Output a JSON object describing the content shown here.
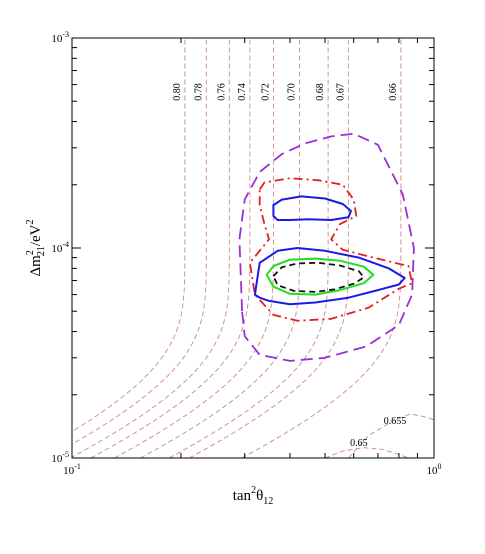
{
  "chart_data": {
    "type": "line",
    "title": "",
    "xlabel": "tan²θ₁₂",
    "xlabel_parts": {
      "base": "tan",
      "sup": "2",
      "sym": "θ",
      "sub": "12"
    },
    "ylabel": "Δm²₂₁/eV²",
    "ylabel_parts": {
      "sym": "Δm",
      "sup1": "2",
      "sub": "21",
      "unit": "/eV",
      "sup2": "2"
    },
    "xscale": "log",
    "yscale": "log",
    "xlim": [
      0.1,
      1.0
    ],
    "ylim": [
      1e-05,
      0.001
    ],
    "grid": false,
    "legend": "none",
    "x_ticks": [
      {
        "base": "10",
        "exp": "-1",
        "value": 0.1
      },
      {
        "base": "10",
        "exp": "0",
        "value": 1.0
      }
    ],
    "y_ticks": [
      {
        "base": "10",
        "exp": "-5",
        "value": 1e-05
      },
      {
        "base": "10",
        "exp": "-4",
        "value": 0.0001
      },
      {
        "base": "10",
        "exp": "-3",
        "value": 0.001
      }
    ],
    "iso_contour_color": "#c98a8a",
    "iso_contours": [
      {
        "label": "0.80",
        "x_asym": 0.205
      },
      {
        "label": "0.78",
        "x_asym": 0.235
      },
      {
        "label": "0.76",
        "x_asym": 0.272
      },
      {
        "label": "0.74",
        "x_asym": 0.31
      },
      {
        "label": "0.72",
        "x_asym": 0.36
      },
      {
        "label": "0.70",
        "x_asym": 0.425
      },
      {
        "label": "0.68",
        "x_asym": 0.51
      },
      {
        "label": "0.67",
        "x_asym": 0.58
      },
      {
        "label": "0.66",
        "x_asym": 0.81
      }
    ],
    "low_contours": [
      {
        "label": "0.655",
        "label_at": [
          0.78,
          1.45e-05
        ]
      },
      {
        "label": "0.65",
        "label_at": [
          0.62,
          1.14e-05
        ]
      }
    ],
    "series": [
      {
        "style": "long-dashed",
        "color": "#9a2fd6",
        "x": [
          0.295,
          0.29,
          0.3,
          0.33,
          0.38,
          0.44,
          0.52,
          0.6,
          0.7,
          0.82,
          0.88,
          0.87,
          0.8,
          0.65,
          0.5,
          0.4,
          0.33,
          0.3,
          0.295
        ],
        "y": [
          5e-05,
          0.00011,
          0.00017,
          0.00023,
          0.00028,
          0.000315,
          0.00034,
          0.00035,
          0.00031,
          0.00018,
          0.0001,
          6e-05,
          4.3e-05,
          3.4e-05,
          3e-05,
          2.9e-05,
          3.1e-05,
          3.8e-05,
          5e-05
        ]
      },
      {
        "style": "dash-dot",
        "color": "#e02020",
        "x": [
          0.33,
          0.34,
          0.4,
          0.48,
          0.56,
          0.6,
          0.61,
          0.55,
          0.52,
          0.56,
          0.68,
          0.85,
          0.87,
          0.8,
          0.66,
          0.52,
          0.42,
          0.36,
          0.32,
          0.31,
          0.35,
          0.34,
          0.33,
          0.33
        ],
        "y": [
          0.00019,
          0.000205,
          0.000215,
          0.00021,
          0.0002,
          0.00017,
          0.000142,
          0.00013,
          0.00011,
          9.8e-05,
          9e-05,
          8.2e-05,
          6.8e-05,
          6.4e-05,
          5.2e-05,
          4.6e-05,
          4.5e-05,
          4.8e-05,
          6e-05,
          8.5e-05,
          0.00011,
          0.00013,
          0.00016,
          0.00019
        ]
      },
      {
        "style": "solid",
        "color": "#1a1ae6",
        "x": [
          0.36,
          0.36,
          0.38,
          0.43,
          0.5,
          0.56,
          0.59,
          0.58,
          0.52,
          0.45,
          0.4,
          0.37,
          0.36
        ],
        "y": [
          0.000142,
          0.00016,
          0.00017,
          0.000176,
          0.000172,
          0.000162,
          0.00015,
          0.00014,
          0.000136,
          0.000137,
          0.000136,
          0.000136,
          0.000142
        ]
      },
      {
        "style": "solid",
        "color": "#1a1ae6",
        "x": [
          0.32,
          0.33,
          0.37,
          0.42,
          0.5,
          0.62,
          0.75,
          0.83,
          0.8,
          0.7,
          0.58,
          0.47,
          0.4,
          0.35,
          0.33,
          0.32
        ],
        "y": [
          6e-05,
          8.5e-05,
          9.7e-05,
          0.0001,
          9.7e-05,
          9e-05,
          8e-05,
          7.2e-05,
          6.7e-05,
          6.3e-05,
          5.8e-05,
          5.5e-05,
          5.4e-05,
          5.6e-05,
          5.8e-05,
          6e-05
        ]
      },
      {
        "style": "solid",
        "color": "#22dd22",
        "x": [
          0.345,
          0.36,
          0.4,
          0.47,
          0.55,
          0.64,
          0.68,
          0.64,
          0.55,
          0.47,
          0.4,
          0.36,
          0.345
        ],
        "y": [
          7.45e-05,
          8.2e-05,
          8.8e-05,
          8.9e-05,
          8.7e-05,
          8.15e-05,
          7.45e-05,
          6.8e-05,
          6.3e-05,
          6e-05,
          6.05e-05,
          6.55e-05,
          7.45e-05
        ]
      },
      {
        "style": "dashed",
        "color": "#111111",
        "x": [
          0.36,
          0.38,
          0.42,
          0.48,
          0.55,
          0.62,
          0.64,
          0.6,
          0.53,
          0.47,
          0.41,
          0.37,
          0.36
        ],
        "y": [
          7.35e-05,
          8.1e-05,
          8.45e-05,
          8.5e-05,
          8.25e-05,
          7.75e-05,
          7.25e-05,
          6.75e-05,
          6.35e-05,
          6.18e-05,
          6.25e-05,
          6.65e-05,
          7.35e-05
        ]
      }
    ]
  }
}
